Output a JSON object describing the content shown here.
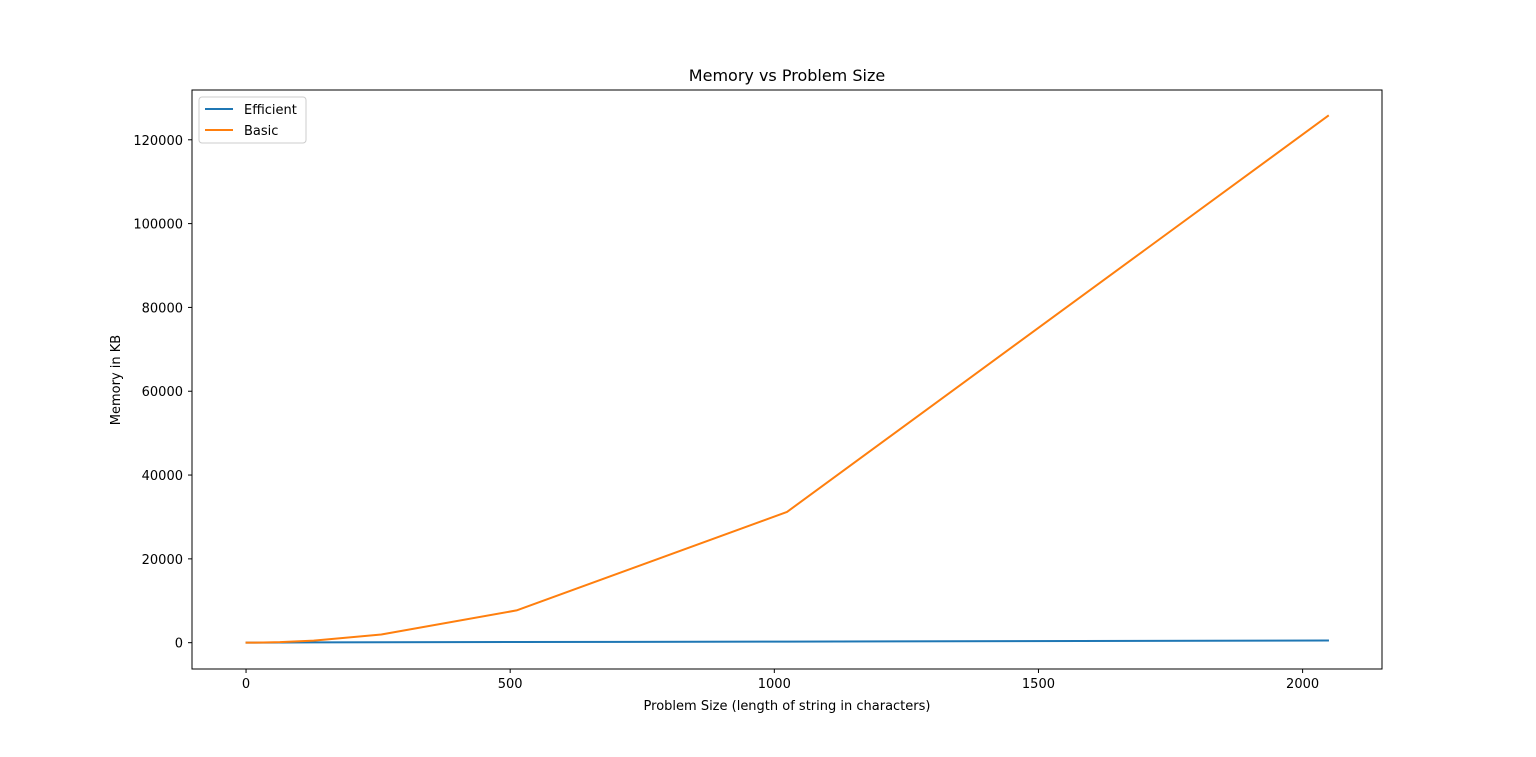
{
  "chart_data": {
    "type": "line",
    "title": "Memory vs Problem Size",
    "xlabel": "Problem Size (length of string in characters)",
    "ylabel": "Memory in KB",
    "xlim": [
      -102.3,
      2150.3
    ],
    "ylim": [
      -6280,
      131880
    ],
    "xticks": [
      0,
      500,
      1000,
      1500,
      2000
    ],
    "yticks": [
      0,
      20000,
      40000,
      60000,
      80000,
      100000,
      120000
    ],
    "grid": false,
    "legend_position": "upper-left",
    "x": [
      1,
      2,
      4,
      8,
      16,
      32,
      64,
      128,
      256,
      512,
      1024,
      2048
    ],
    "series": [
      {
        "name": "Efficient",
        "color": "#1f77b4",
        "values": [
          2,
          3,
          5,
          8,
          12,
          20,
          35,
          60,
          110,
          160,
          260,
          510
        ]
      },
      {
        "name": "Basic",
        "color": "#ff7f0e",
        "values": [
          1,
          1,
          2,
          5,
          10,
          35,
          120,
          480,
          1950,
          7700,
          31200,
          125700
        ]
      }
    ]
  }
}
